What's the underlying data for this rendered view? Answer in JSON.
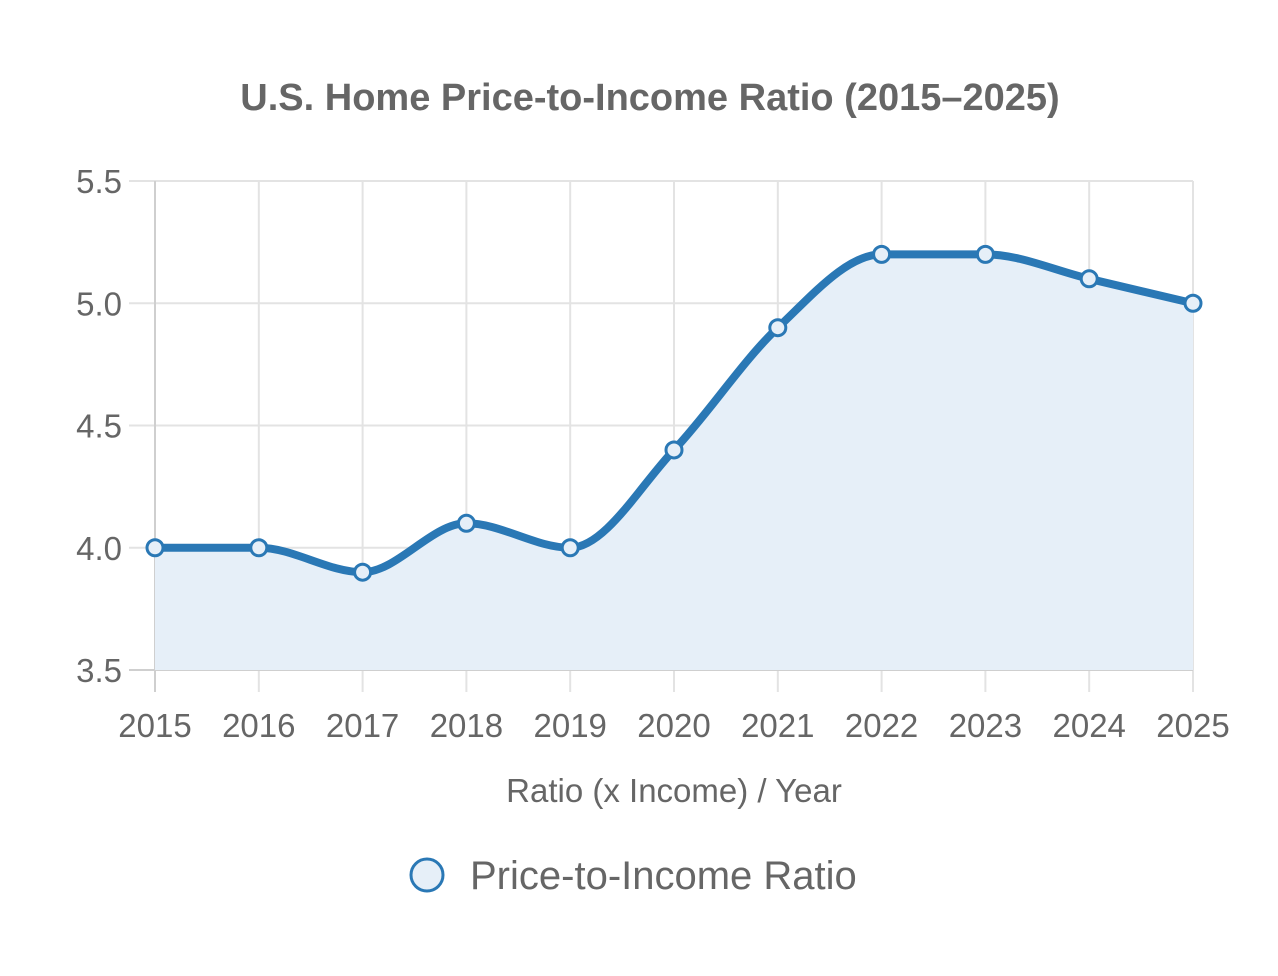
{
  "chart_data": {
    "type": "line",
    "title": "U.S. Home Price-to-Income Ratio (2015–2025)",
    "xlabel": "Ratio (x Income) / Year",
    "ylabel": "",
    "categories": [
      "2015",
      "2016",
      "2017",
      "2018",
      "2019",
      "2020",
      "2021",
      "2022",
      "2023",
      "2024",
      "2025"
    ],
    "series": [
      {
        "name": "Price-to-Income Ratio",
        "values": [
          4.0,
          4.0,
          3.9,
          4.1,
          4.0,
          4.4,
          4.9,
          5.2,
          5.2,
          5.1,
          5.0
        ],
        "color": "#2a78b5",
        "fill": "#e6eff8"
      }
    ],
    "ylim": [
      3.5,
      5.5
    ],
    "yticks": [
      "3.5",
      "4.0",
      "4.5",
      "5.0",
      "5.5"
    ],
    "grid": true,
    "area_fill": true,
    "legend_position": "bottom"
  }
}
